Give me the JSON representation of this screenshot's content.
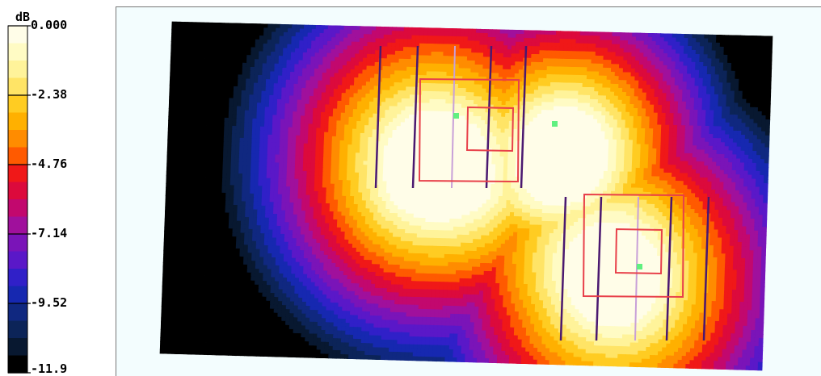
{
  "chart_data": {
    "type": "heatmap",
    "unit": "dB",
    "legend_ticks": [
      "0.000",
      "-2.38",
      "-4.76",
      "-7.14",
      "-9.52",
      "-11.9"
    ],
    "levels": [
      {
        "lo": -0.595,
        "hi": 0.0,
        "color": "#fffde8"
      },
      {
        "lo": -1.19,
        "hi": -0.595,
        "color": "#fffbc4"
      },
      {
        "lo": -1.785,
        "hi": -1.19,
        "color": "#fff39a"
      },
      {
        "lo": -2.38,
        "hi": -1.785,
        "color": "#ffe466"
      },
      {
        "lo": -2.975,
        "hi": -2.38,
        "color": "#ffcc22"
      },
      {
        "lo": -3.57,
        "hi": -2.975,
        "color": "#ffb000"
      },
      {
        "lo": -4.165,
        "hi": -3.57,
        "color": "#ff8c00"
      },
      {
        "lo": -4.76,
        "hi": -4.165,
        "color": "#ff5a00"
      },
      {
        "lo": -5.355,
        "hi": -4.76,
        "color": "#f01818"
      },
      {
        "lo": -5.95,
        "hi": -5.355,
        "color": "#dc0a3c"
      },
      {
        "lo": -6.545,
        "hi": -5.95,
        "color": "#c2086e"
      },
      {
        "lo": -7.14,
        "hi": -6.545,
        "color": "#a0109c"
      },
      {
        "lo": -7.735,
        "hi": -7.14,
        "color": "#7a14b8"
      },
      {
        "lo": -8.33,
        "hi": -7.735,
        "color": "#5a18c8"
      },
      {
        "lo": -8.925,
        "hi": -8.33,
        "color": "#3020c8"
      },
      {
        "lo": -9.52,
        "hi": -8.925,
        "color": "#1628b0"
      },
      {
        "lo": -10.115,
        "hi": -9.52,
        "color": "#102880"
      },
      {
        "lo": -10.71,
        "hi": -10.115,
        "color": "#0c2458"
      },
      {
        "lo": -11.305,
        "hi": -10.71,
        "color": "#081830"
      },
      {
        "lo": -11.9,
        "hi": -11.305,
        "color": "#000000"
      }
    ],
    "min": -11.9,
    "max": 0.0,
    "grid": false,
    "legend_position": "left",
    "colors": {
      "array_line": "#4a1870",
      "center_line": "#c8a0d8",
      "frame": "#e8404a",
      "marker": "#60f080",
      "panel_bg": "#f3fdfe"
    }
  }
}
